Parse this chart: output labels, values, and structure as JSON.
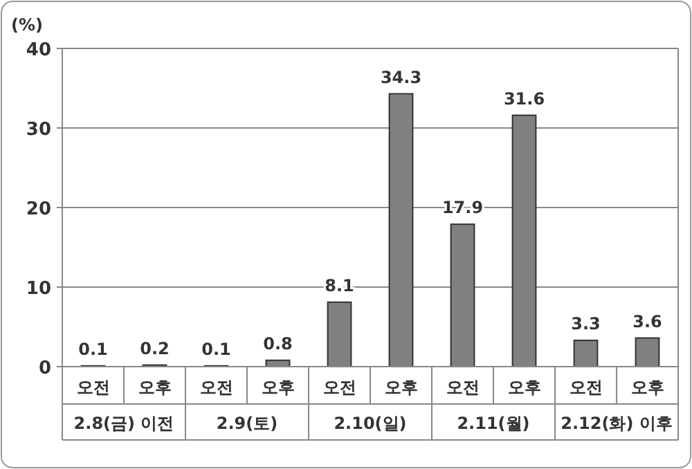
{
  "chart_data": {
    "type": "bar",
    "ylabel": "(%)",
    "categories": [
      "오전",
      "오후",
      "오전",
      "오후",
      "오전",
      "오후",
      "오전",
      "오후",
      "오전",
      "오후"
    ],
    "values": [
      0.1,
      0.2,
      0.1,
      0.8,
      8.1,
      34.3,
      17.9,
      31.6,
      3.3,
      3.6
    ],
    "color": "#808080",
    "ylim": [
      0,
      40
    ],
    "yticks": [
      0,
      10,
      20,
      30,
      40
    ],
    "grid": "y",
    "data_labels": true,
    "annotations": [
      "2.8(금) 이전",
      "2.9(토)",
      "2.10(일)",
      "2.11(월)",
      "2.12(화) 이후"
    ]
  }
}
